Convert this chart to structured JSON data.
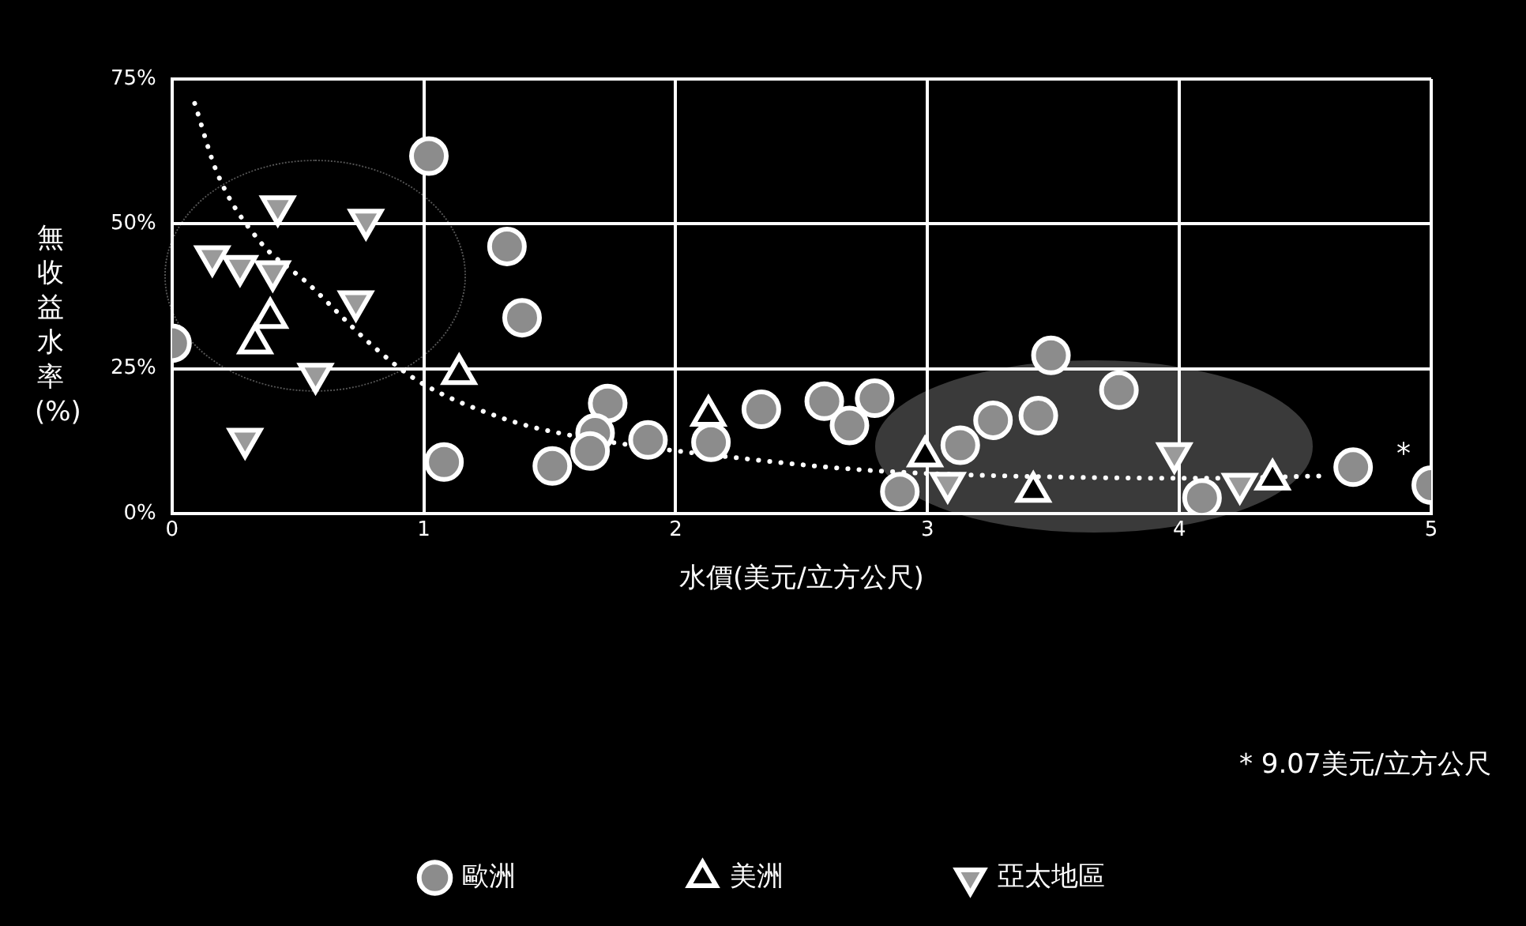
{
  "chart_data": {
    "type": "scatter",
    "xlabel": "水價(美元/立方公尺)",
    "ylabel": "無收益水率(%)",
    "xlim": [
      0,
      5
    ],
    "ylim": [
      0,
      75
    ],
    "xticks": [
      0,
      1,
      2,
      3,
      4,
      5
    ],
    "yticks": [
      {
        "value": 0,
        "label": "0%"
      },
      {
        "value": 25,
        "label": "25%"
      },
      {
        "value": 50,
        "label": "50%"
      },
      {
        "value": 75,
        "label": "75%"
      }
    ],
    "grid": true,
    "legend": "bottom",
    "annotations": [
      "*",
      "* 9.07美元/立方公尺"
    ],
    "series": [
      {
        "name": "歐洲",
        "color": "#8c8c8c",
        "marker": "circle",
        "x": [
          0,
          1.02,
          1.33,
          1.39,
          1.08,
          1.73,
          1.68,
          1.66,
          1.51,
          1.89,
          2.14,
          2.34,
          2.59,
          2.69,
          2.79,
          2.89,
          3.13,
          3.26,
          3.44,
          3.49,
          3.76,
          4.09,
          4.69,
          5.0
        ],
        "values": [
          29.4,
          61.7,
          46.1,
          33.8,
          8.9,
          19.0,
          13.9,
          10.8,
          8.2,
          12.7,
          12.3,
          18.0,
          19.4,
          15.2,
          19.9,
          3.8,
          11.8,
          16.1,
          16.9,
          27.3,
          21.3,
          2.7,
          8.0,
          4.9
        ]
      },
      {
        "name": "美洲",
        "color": "#000000",
        "marker": "triangle",
        "x": [
          0.39,
          0.33,
          1.14,
          2.13,
          2.99,
          3.42,
          4.37
        ],
        "values": [
          33.8,
          29.4,
          24.1,
          16.9,
          9.9,
          3.8,
          5.9
        ]
      },
      {
        "name": "亞太地區",
        "color": "#9a9a9a",
        "marker": "triangle-down",
        "x": [
          0.42,
          0.77,
          0.16,
          0.27,
          0.4,
          0.73,
          0.57,
          0.29,
          3.08,
          3.98,
          4.24
        ],
        "values": [
          53.0,
          50.7,
          44.4,
          42.7,
          41.8,
          36.6,
          24.1,
          12.9,
          5.3,
          10.4,
          5.1
        ]
      },
      {
        "type": "line",
        "color": "#ffffff",
        "line_style": "dotted",
        "marker": "none",
        "x": [
          0.09,
          0.18,
          0.35,
          0.54,
          0.79,
          0.98,
          1.31,
          1.56,
          2.27,
          2.79,
          3.52,
          4.14,
          4.56
        ],
        "values": [
          70.8,
          58.7,
          46.9,
          39.7,
          29.2,
          22.8,
          16.5,
          13.7,
          9.5,
          7.4,
          6.3,
          6.1,
          6.5
        ]
      }
    ]
  }
}
